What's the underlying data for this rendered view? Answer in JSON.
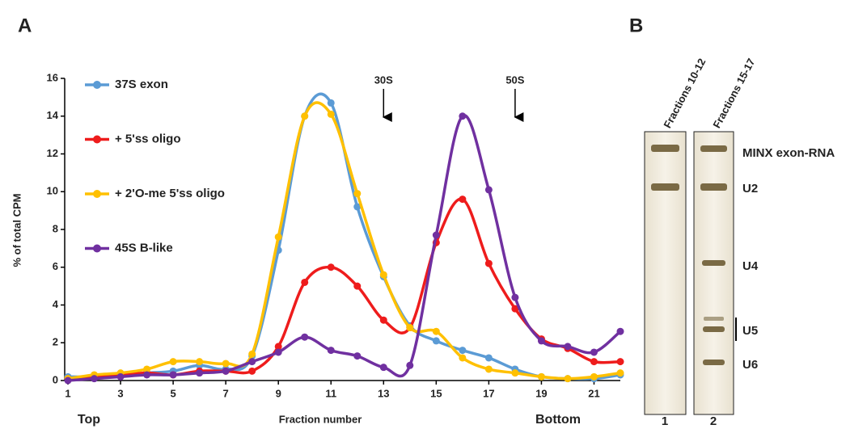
{
  "chart_data": {
    "type": "line",
    "panel": "A",
    "x_label": "Fraction number",
    "y_label": "% of total CPM",
    "x_left_label": "Top",
    "x_right_label": "Bottom",
    "x": [
      1,
      2,
      3,
      4,
      5,
      6,
      7,
      8,
      9,
      10,
      11,
      12,
      13,
      14,
      15,
      16,
      17,
      18,
      19,
      20,
      21,
      22
    ],
    "xlim": [
      1,
      22
    ],
    "xticks": [
      1,
      3,
      5,
      7,
      9,
      11,
      13,
      15,
      17,
      19,
      21
    ],
    "ylim": [
      0,
      16
    ],
    "yticks": [
      0,
      2,
      4,
      6,
      8,
      10,
      12,
      14,
      16
    ],
    "series": [
      {
        "name": "37S exon",
        "color": "#5b9bd5",
        "values": [
          0.2,
          0.2,
          0.3,
          0.4,
          0.5,
          0.8,
          0.6,
          1.3,
          6.9,
          14.0,
          14.7,
          9.2,
          5.5,
          2.9,
          2.1,
          1.6,
          1.2,
          0.6,
          0.2,
          0.1,
          0.1,
          0.3
        ]
      },
      {
        "name": "+ 5'ss oligo",
        "color": "#ee1c1c",
        "values": [
          0.1,
          0.2,
          0.3,
          0.4,
          0.3,
          0.5,
          0.5,
          0.5,
          1.8,
          5.2,
          6.0,
          5.0,
          3.2,
          2.8,
          7.3,
          9.6,
          6.2,
          3.8,
          2.2,
          1.7,
          1.0,
          1.0
        ]
      },
      {
        "name": "+ 2'O-me 5'ss oligo",
        "color": "#ffc000",
        "values": [
          0.1,
          0.3,
          0.4,
          0.6,
          1.0,
          1.0,
          0.9,
          1.4,
          7.6,
          14.0,
          14.1,
          9.9,
          5.6,
          2.8,
          2.6,
          1.2,
          0.6,
          0.4,
          0.2,
          0.1,
          0.2,
          0.4
        ]
      },
      {
        "name": "45S B-like",
        "color": "#7030a0",
        "values": [
          0.0,
          0.1,
          0.2,
          0.3,
          0.3,
          0.4,
          0.5,
          1.0,
          1.5,
          2.3,
          1.6,
          1.3,
          0.7,
          0.8,
          7.7,
          14.0,
          10.1,
          4.4,
          2.1,
          1.8,
          1.5,
          2.6
        ]
      }
    ],
    "annotations": [
      {
        "text": "30S",
        "x": 13
      },
      {
        "text": "50S",
        "x": 18
      }
    ]
  },
  "gel": {
    "panel": "B",
    "lanes": [
      {
        "title": "Fractions 10-12",
        "number": "1"
      },
      {
        "title": "Fractions 15-17",
        "number": "2"
      }
    ],
    "bands": [
      "MINX exon-RNA",
      "U2",
      "U4",
      "U5",
      "U6"
    ]
  }
}
